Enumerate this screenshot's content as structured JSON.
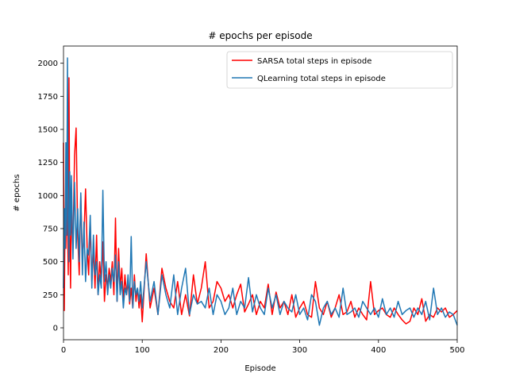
{
  "chart_data": {
    "type": "line",
    "title": "# epochs per episode",
    "xlabel": "Episode",
    "ylabel": "# epochs",
    "xlim": [
      0,
      500
    ],
    "ylim": [
      -90,
      2130
    ],
    "xticks": [
      0,
      100,
      200,
      300,
      400,
      500
    ],
    "yticks": [
      0,
      250,
      500,
      750,
      1000,
      1250,
      1500,
      1750,
      2000
    ],
    "grid": false,
    "legend_position": "top-right",
    "series": [
      {
        "name": "SARSA total steps in episode",
        "color": "#ff0000",
        "x": [
          0,
          1,
          2,
          3,
          4,
          5,
          6,
          7,
          8,
          9,
          10,
          12,
          14,
          16,
          18,
          20,
          22,
          24,
          26,
          28,
          30,
          32,
          34,
          36,
          38,
          40,
          42,
          44,
          46,
          48,
          50,
          52,
          54,
          56,
          58,
          60,
          62,
          64,
          66,
          68,
          70,
          72,
          74,
          76,
          78,
          80,
          82,
          84,
          86,
          88,
          90,
          92,
          94,
          96,
          98,
          100,
          105,
          110,
          115,
          120,
          125,
          130,
          135,
          140,
          145,
          150,
          155,
          160,
          165,
          170,
          175,
          180,
          185,
          190,
          195,
          200,
          205,
          210,
          215,
          220,
          225,
          230,
          235,
          240,
          245,
          250,
          255,
          260,
          265,
          270,
          275,
          280,
          285,
          290,
          295,
          300,
          305,
          310,
          315,
          320,
          325,
          330,
          335,
          340,
          345,
          350,
          355,
          360,
          365,
          370,
          375,
          380,
          385,
          390,
          395,
          400,
          405,
          410,
          415,
          420,
          425,
          430,
          435,
          440,
          445,
          450,
          455,
          460,
          465,
          470,
          475,
          480,
          485,
          490,
          495,
          500
        ],
        "values": [
          1400,
          130,
          900,
          600,
          1200,
          800,
          400,
          1890,
          700,
          300,
          900,
          600,
          1300,
          1510,
          700,
          400,
          1000,
          500,
          700,
          1050,
          600,
          400,
          800,
          350,
          600,
          300,
          700,
          250,
          500,
          350,
          650,
          200,
          400,
          300,
          450,
          350,
          500,
          250,
          830,
          200,
          600,
          300,
          450,
          200,
          400,
          250,
          350,
          180,
          300,
          150,
          400,
          200,
          300,
          150,
          250,
          45,
          560,
          150,
          300,
          100,
          450,
          300,
          200,
          150,
          350,
          100,
          250,
          90,
          400,
          180,
          300,
          500,
          150,
          200,
          350,
          300,
          200,
          250,
          150,
          250,
          330,
          120,
          180,
          250,
          100,
          200,
          150,
          330,
          100,
          270,
          150,
          200,
          100,
          250,
          80,
          150,
          200,
          100,
          80,
          350,
          150,
          100,
          200,
          80,
          150,
          250,
          100,
          120,
          200,
          80,
          150,
          100,
          60,
          350,
          100,
          130,
          150,
          100,
          80,
          150,
          100,
          60,
          30,
          50,
          150,
          100,
          220,
          50,
          100,
          80,
          150,
          120,
          150,
          80,
          100,
          130
        ]
      },
      {
        "name": "QLearning total steps in episode",
        "color": "#1f77b4",
        "x": [
          0,
          1,
          2,
          3,
          4,
          5,
          6,
          7,
          8,
          9,
          10,
          12,
          14,
          16,
          18,
          20,
          22,
          24,
          26,
          28,
          30,
          32,
          34,
          36,
          38,
          40,
          42,
          44,
          46,
          48,
          50,
          52,
          54,
          56,
          58,
          60,
          62,
          64,
          66,
          68,
          70,
          72,
          74,
          76,
          78,
          80,
          82,
          84,
          86,
          88,
          90,
          92,
          94,
          96,
          98,
          100,
          105,
          110,
          115,
          120,
          125,
          130,
          135,
          140,
          145,
          150,
          155,
          160,
          165,
          170,
          175,
          180,
          185,
          190,
          195,
          200,
          205,
          210,
          215,
          220,
          225,
          230,
          235,
          240,
          245,
          250,
          255,
          260,
          265,
          270,
          275,
          280,
          285,
          290,
          295,
          300,
          305,
          310,
          315,
          320,
          325,
          330,
          335,
          340,
          345,
          350,
          355,
          360,
          365,
          370,
          375,
          380,
          385,
          390,
          395,
          400,
          405,
          410,
          415,
          420,
          425,
          430,
          435,
          440,
          445,
          450,
          455,
          460,
          465,
          470,
          475,
          480,
          485,
          490,
          495,
          500
        ],
        "values": [
          300,
          900,
          600,
          1400,
          700,
          2040,
          800,
          500,
          1180,
          700,
          1150,
          520,
          1100,
          600,
          900,
          500,
          1020,
          400,
          800,
          350,
          600,
          550,
          850,
          300,
          700,
          400,
          500,
          250,
          400,
          300,
          1040,
          350,
          500,
          250,
          400,
          300,
          450,
          350,
          550,
          200,
          500,
          250,
          350,
          150,
          300,
          250,
          400,
          200,
          690,
          150,
          350,
          250,
          300,
          200,
          350,
          150,
          500,
          200,
          350,
          100,
          400,
          250,
          150,
          400,
          100,
          300,
          450,
          100,
          250,
          180,
          200,
          150,
          300,
          100,
          250,
          200,
          100,
          150,
          300,
          100,
          200,
          150,
          380,
          120,
          250,
          150,
          100,
          300,
          150,
          250,
          100,
          200,
          150,
          120,
          250,
          100,
          150,
          60,
          250,
          200,
          20,
          150,
          200,
          100,
          150,
          80,
          300,
          100,
          120,
          150,
          80,
          200,
          150,
          100,
          150,
          80,
          220,
          100,
          150,
          80,
          200,
          100,
          130,
          150,
          80,
          150,
          100,
          200,
          60,
          300,
          100,
          150,
          80,
          120,
          100,
          20
        ]
      }
    ]
  }
}
